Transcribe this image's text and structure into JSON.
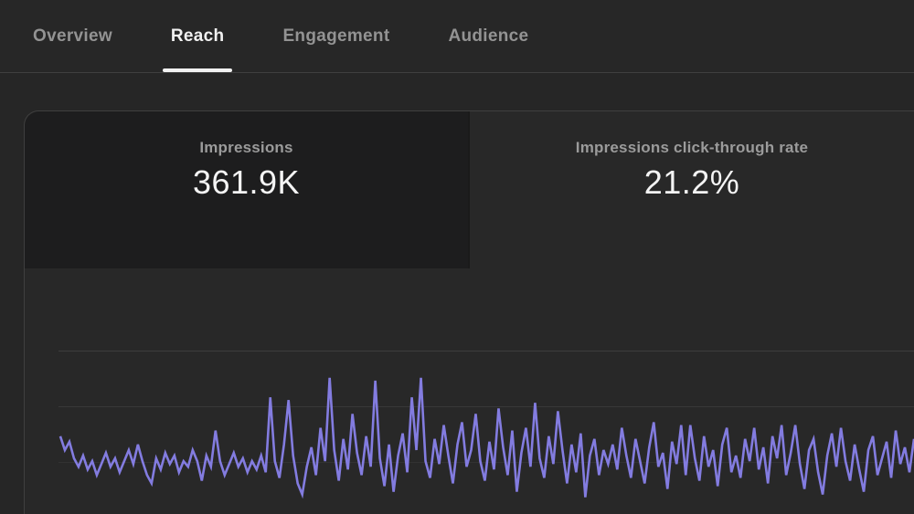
{
  "tabs": [
    {
      "label": "Overview",
      "active": false
    },
    {
      "label": "Reach",
      "active": true
    },
    {
      "label": "Engagement",
      "active": false
    },
    {
      "label": "Audience",
      "active": false
    }
  ],
  "metrics": [
    {
      "label": "Impressions",
      "value": "361.9K",
      "selected": true
    },
    {
      "label": "Impressions click-through rate",
      "value": "21.2%",
      "selected": false
    }
  ],
  "colors": {
    "background": "#262626",
    "panel": "#282828",
    "selected_card": "#1d1d1e",
    "accent_line": "#837ce0",
    "active_tab_text": "#f1f1f1",
    "inactive_tab_text": "#939393",
    "metric_label_text": "#9b9b9b"
  },
  "chart_data": {
    "type": "line",
    "title": "",
    "xlabel": "",
    "ylabel": "",
    "axis_labels_visible": false,
    "grid": true,
    "gridline_values": [
      2000,
      4000,
      6000
    ],
    "ylim": [
      0,
      6500
    ],
    "legend": "none",
    "series": [
      {
        "name": "Impressions",
        "values": [
          2900,
          2400,
          2700,
          2100,
          1800,
          2200,
          1700,
          2000,
          1500,
          1900,
          2300,
          1800,
          2100,
          1600,
          2000,
          2400,
          1900,
          2600,
          2000,
          1500,
          1200,
          2100,
          1700,
          2300,
          1900,
          2200,
          1600,
          2000,
          1800,
          2400,
          2000,
          1300,
          2200,
          1800,
          3100,
          2000,
          1500,
          1900,
          2300,
          1800,
          2100,
          1600,
          2000,
          1700,
          2200,
          1600,
          4300,
          2000,
          1400,
          2600,
          4200,
          2200,
          1200,
          800,
          1800,
          2500,
          1500,
          3200,
          2000,
          5000,
          2400,
          1300,
          2800,
          1700,
          3700,
          2300,
          1500,
          2900,
          1800,
          4900,
          2100,
          1100,
          2600,
          900,
          2200,
          3000,
          1600,
          4300,
          2400,
          5000,
          2000,
          1400,
          2800,
          1900,
          3300,
          2200,
          1200,
          2600,
          3400,
          1800,
          2400,
          3700,
          2000,
          1300,
          2700,
          1700,
          3900,
          2500,
          1500,
          3100,
          900,
          2300,
          3200,
          1800,
          4100,
          2100,
          1400,
          2900,
          1900,
          3800,
          2400,
          1200,
          2600,
          1600,
          3000,
          700,
          2200,
          2800,
          1500,
          2400,
          1900,
          2600,
          1700,
          3200,
          2200,
          1400,
          2800,
          2000,
          1200,
          2500,
          3400,
          1800,
          2300,
          1000,
          2700,
          1900,
          3300,
          1500,
          3300,
          2100,
          1300,
          2900,
          1800,
          2400,
          1100,
          2600,
          3200,
          1600,
          2200,
          1400,
          2800,
          2000,
          3200,
          1700,
          2500,
          1200,
          2900,
          2100,
          3300,
          1500,
          2300,
          3300,
          1900,
          1000,
          2400,
          2800,
          1600,
          800,
          2200,
          3000,
          1800,
          3200,
          2000,
          1300,
          2600,
          1700,
          900,
          2400,
          2900,
          1500,
          2100,
          2700,
          1400,
          3100,
          1900,
          2500,
          1600,
          2800
        ]
      }
    ]
  }
}
